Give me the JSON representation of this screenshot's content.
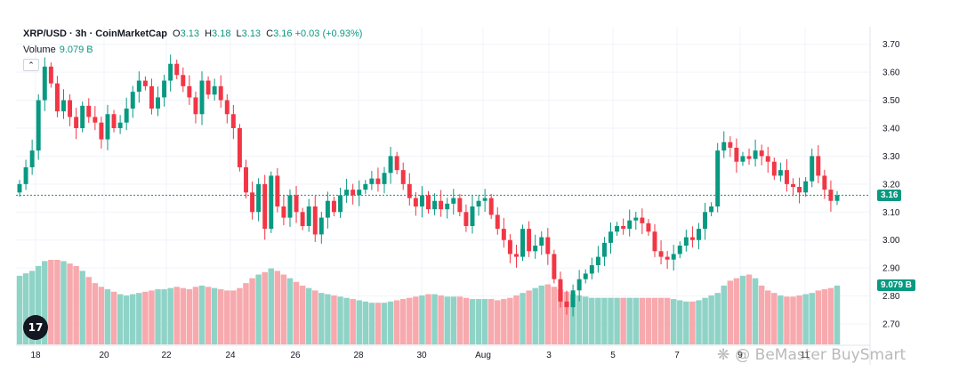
{
  "legend": {
    "symbol": "XRP/USD · 3h · CoinMarketCap",
    "o_label": "O",
    "o_value": "3.13",
    "h_label": "H",
    "h_value": "3.18",
    "l_label": "L",
    "l_value": "3.13",
    "c_label": "C",
    "c_value": "3.16",
    "change": "+0.03 (+0.93%)"
  },
  "volume_legend": {
    "label": "Volume",
    "value": "9.079 B"
  },
  "current_price_label": "3.16",
  "current_volume_label": "9.079 B",
  "collapse_icon": "chevron-up-icon",
  "logo_text": "17",
  "watermark": "@ BeMaster BuySmart",
  "colors": {
    "up": "#089981",
    "down": "#f23645",
    "volume_up": "#8fd3c7",
    "volume_down": "#f7a9ad",
    "grid": "#f0f3fa",
    "axis_text": "#131722"
  },
  "chart_data": {
    "type": "candlestick",
    "title": "XRP/USD · 3h · CoinMarketCap",
    "y_ticks": [
      "3.70",
      "3.60",
      "3.50",
      "3.40",
      "3.30",
      "3.20",
      "3.10",
      "3.00",
      "2.90",
      "2.80",
      "2.70"
    ],
    "ylim": [
      2.665,
      3.715
    ],
    "x_ticks": [
      "18",
      "20",
      "22",
      "24",
      "26",
      "28",
      "30",
      "Aug",
      "3",
      "5",
      "7",
      "9",
      "11"
    ],
    "current_price": 3.16,
    "grid": true,
    "ohlc_close": [
      3.2,
      3.26,
      3.32,
      3.5,
      3.62,
      3.56,
      3.46,
      3.5,
      3.44,
      3.4,
      3.48,
      3.44,
      3.42,
      3.36,
      3.45,
      3.4,
      3.42,
      3.47,
      3.53,
      3.57,
      3.55,
      3.47,
      3.51,
      3.57,
      3.63,
      3.59,
      3.55,
      3.51,
      3.45,
      3.57,
      3.52,
      3.55,
      3.5,
      3.45,
      3.4,
      3.26,
      3.17,
      3.1,
      3.2,
      3.04,
      3.23,
      3.12,
      3.08,
      3.16,
      3.1,
      3.05,
      3.12,
      3.02,
      3.08,
      3.14,
      3.1,
      3.16,
      3.18,
      3.16,
      3.18,
      3.2,
      3.22,
      3.2,
      3.24,
      3.3,
      3.25,
      3.2,
      3.15,
      3.12,
      3.16,
      3.11,
      3.14,
      3.11,
      3.13,
      3.15,
      3.1,
      3.05,
      3.12,
      3.14,
      3.15,
      3.09,
      3.04,
      3.0,
      2.95,
      2.94,
      3.04,
      2.96,
      2.98,
      3.01,
      2.95,
      2.86,
      2.78,
      2.76,
      2.82,
      2.86,
      2.88,
      2.91,
      2.94,
      2.99,
      3.03,
      3.05,
      3.04,
      3.07,
      3.08,
      3.06,
      3.03,
      2.96,
      2.94,
      2.93,
      2.95,
      2.98,
      3.01,
      3.0,
      3.04,
      3.1,
      3.12,
      3.32,
      3.35,
      3.33,
      3.28,
      3.3,
      3.29,
      3.32,
      3.3,
      3.28,
      3.23,
      3.25,
      3.2,
      3.19,
      3.17,
      3.21,
      3.3,
      3.23,
      3.18,
      3.14,
      3.16
    ],
    "volume": [
      2.8,
      2.9,
      3.0,
      3.2,
      3.4,
      3.45,
      3.45,
      3.4,
      3.3,
      3.2,
      3.0,
      2.75,
      2.5,
      2.35,
      2.25,
      2.15,
      2.05,
      2.0,
      2.05,
      2.1,
      2.15,
      2.2,
      2.25,
      2.25,
      2.3,
      2.35,
      2.3,
      2.25,
      2.35,
      2.4,
      2.35,
      2.3,
      2.25,
      2.2,
      2.2,
      2.3,
      2.5,
      2.7,
      2.85,
      2.95,
      3.1,
      3.0,
      2.85,
      2.7,
      2.55,
      2.4,
      2.3,
      2.2,
      2.1,
      2.05,
      2.0,
      1.95,
      1.9,
      1.85,
      1.8,
      1.75,
      1.7,
      1.7,
      1.7,
      1.75,
      1.8,
      1.85,
      1.9,
      1.95,
      2.0,
      2.05,
      2.05,
      2.0,
      1.95,
      1.95,
      1.95,
      1.9,
      1.85,
      1.85,
      1.85,
      1.85,
      1.8,
      1.85,
      1.9,
      2.0,
      2.1,
      2.2,
      2.3,
      2.4,
      2.45,
      2.35,
      2.25,
      2.15,
      2.05,
      2.0,
      1.95,
      1.9,
      1.9,
      1.9,
      1.9,
      1.9,
      1.9,
      1.9,
      1.9,
      1.9,
      1.9,
      1.9,
      1.9,
      1.9,
      1.85,
      1.8,
      1.75,
      1.75,
      1.8,
      1.9,
      2.0,
      2.1,
      2.4,
      2.6,
      2.7,
      2.8,
      2.85,
      2.7,
      2.4,
      2.2,
      2.1,
      2.0,
      1.95,
      1.95,
      2.0,
      2.05,
      2.1,
      2.2,
      2.25,
      2.3,
      2.4
    ]
  }
}
